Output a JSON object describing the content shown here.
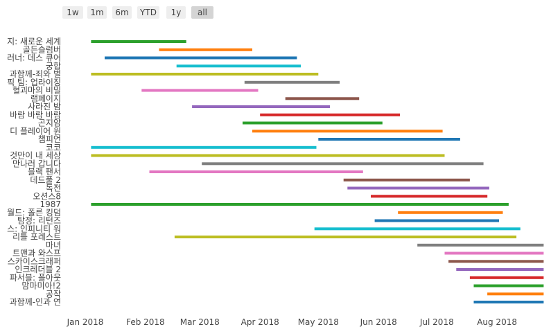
{
  "range_selector": {
    "buttons": [
      "1w",
      "1m",
      "6m",
      "YTD",
      "1y",
      "all"
    ],
    "active": "all"
  },
  "chart_data": {
    "type": "bar",
    "orientation": "horizontal-timeline",
    "x_type": "date",
    "xlim": [
      "2018-01-01",
      "2018-08-27"
    ],
    "x_ticks": [
      {
        "date": "2018-01-01",
        "label": "Jan 2018"
      },
      {
        "date": "2018-02-01",
        "label": "Feb 2018"
      },
      {
        "date": "2018-03-01",
        "label": "Mar 2018"
      },
      {
        "date": "2018-04-01",
        "label": "Apr 2018"
      },
      {
        "date": "2018-05-01",
        "label": "May 2018"
      },
      {
        "date": "2018-06-01",
        "label": "Jun 2018"
      },
      {
        "date": "2018-07-01",
        "label": "Jul 2018"
      },
      {
        "date": "2018-08-01",
        "label": "Aug 2018"
      }
    ],
    "colors": [
      "#2ca02c",
      "#ff7f0e",
      "#1f77b4",
      "#17becf",
      "#bcbd22",
      "#7f7f7f",
      "#e377c2",
      "#8c564b",
      "#9467bd",
      "#d62728"
    ],
    "series": [
      {
        "label": "지: 새로운 세계",
        "start": "2018-01-04",
        "end": "2018-02-22",
        "color": "#2ca02c"
      },
      {
        "label": "골든슬럼버",
        "start": "2018-02-08",
        "end": "2018-03-28",
        "color": "#ff7f0e"
      },
      {
        "label": "러너: 데스 큐어",
        "start": "2018-01-11",
        "end": "2018-04-20",
        "color": "#1f77b4"
      },
      {
        "label": "궁합",
        "start": "2018-02-17",
        "end": "2018-04-22",
        "color": "#17becf"
      },
      {
        "label": "과함께-죄와 벌",
        "start": "2018-01-04",
        "end": "2018-05-01",
        "color": "#bcbd22"
      },
      {
        "label": "픽 팀: 업라이징",
        "start": "2018-03-24",
        "end": "2018-05-12",
        "color": "#7f7f7f"
      },
      {
        "label": "혈괴마의 비밀",
        "start": "2018-01-30",
        "end": "2018-03-31",
        "color": "#e377c2"
      },
      {
        "label": "램페이지",
        "start": "2018-04-14",
        "end": "2018-05-22",
        "color": "#8c564b"
      },
      {
        "label": "사라진 밤",
        "start": "2018-02-25",
        "end": "2018-05-07",
        "color": "#9467bd"
      },
      {
        "label": "바람 바람 바람",
        "start": "2018-04-01",
        "end": "2018-06-12",
        "color": "#d62728"
      },
      {
        "label": "곤지암",
        "start": "2018-03-23",
        "end": "2018-06-03",
        "color": "#2ca02c"
      },
      {
        "label": "디 플레이어 원",
        "start": "2018-03-28",
        "end": "2018-07-04",
        "color": "#ff7f0e"
      },
      {
        "label": "챔피언",
        "start": "2018-05-01",
        "end": "2018-07-13",
        "color": "#1f77b4"
      },
      {
        "label": "코코",
        "start": "2018-01-04",
        "end": "2018-04-30",
        "color": "#17becf"
      },
      {
        "label": "것만이 내 세상",
        "start": "2018-01-04",
        "end": "2018-07-05",
        "color": "#bcbd22"
      },
      {
        "label": "만나러 갑니다",
        "start": "2018-03-02",
        "end": "2018-07-25",
        "color": "#7f7f7f"
      },
      {
        "label": "블랙 팬서",
        "start": "2018-02-03",
        "end": "2018-05-24",
        "color": "#e377c2"
      },
      {
        "label": "데드풀 2",
        "start": "2018-05-14",
        "end": "2018-07-18",
        "color": "#8c564b"
      },
      {
        "label": "독전",
        "start": "2018-05-16",
        "end": "2018-07-28",
        "color": "#9467bd"
      },
      {
        "label": "오션스8",
        "start": "2018-05-28",
        "end": "2018-07-27",
        "color": "#d62728"
      },
      {
        "label": "1987",
        "start": "2018-01-04",
        "end": "2018-08-07",
        "color": "#2ca02c"
      },
      {
        "label": "월드: 폴른 킹덤",
        "start": "2018-06-11",
        "end": "2018-08-04",
        "color": "#ff7f0e"
      },
      {
        "label": "탐정: 리턴즈",
        "start": "2018-05-30",
        "end": "2018-08-02",
        "color": "#1f77b4"
      },
      {
        "label": "스: 인피니티 워",
        "start": "2018-04-29",
        "end": "2018-08-13",
        "color": "#17becf"
      },
      {
        "label": "리틀 포레스트",
        "start": "2018-02-16",
        "end": "2018-08-11",
        "color": "#bcbd22"
      },
      {
        "label": "마녀",
        "start": "2018-06-21",
        "end": "2018-08-25",
        "color": "#7f7f7f"
      },
      {
        "label": "트맨과 와스프",
        "start": "2018-07-05",
        "end": "2018-08-25",
        "color": "#e377c2"
      },
      {
        "label": "스카이스크래퍼",
        "start": "2018-07-07",
        "end": "2018-08-25",
        "color": "#8c564b"
      },
      {
        "label": "인크레더블 2",
        "start": "2018-07-11",
        "end": "2018-08-25",
        "color": "#9467bd"
      },
      {
        "label": "파서블: 폴아웃",
        "start": "2018-07-18",
        "end": "2018-08-25",
        "color": "#d62728"
      },
      {
        "label": "맘마미아!2",
        "start": "2018-07-20",
        "end": "2018-08-25",
        "color": "#2ca02c"
      },
      {
        "label": "공작",
        "start": "2018-07-27",
        "end": "2018-08-25",
        "color": "#ff7f0e"
      },
      {
        "label": "과함께-인과 연",
        "start": "2018-07-20",
        "end": "2018-08-25",
        "color": "#1f77b4"
      }
    ]
  }
}
